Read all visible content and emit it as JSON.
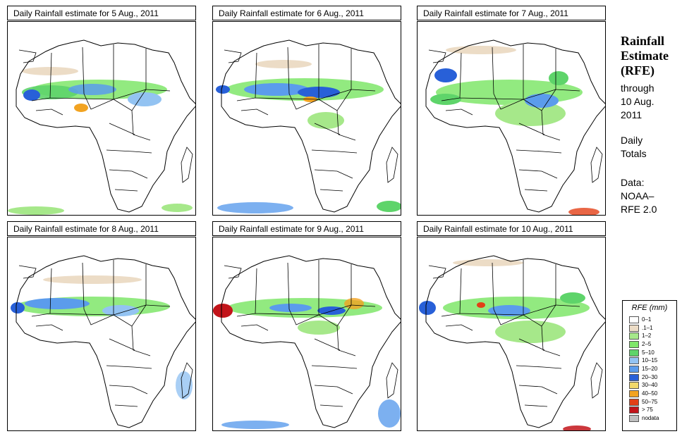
{
  "panels": [
    {
      "title": "Daily Rainfall estimate for  5 Aug., 2011"
    },
    {
      "title": "Daily Rainfall estimate for  6 Aug., 2011"
    },
    {
      "title": "Daily Rainfall estimate for  7 Aug., 2011"
    },
    {
      "title": "Daily Rainfall estimate for  8 Aug., 2011"
    },
    {
      "title": "Daily Rainfall estimate for  9 Aug., 2011"
    },
    {
      "title": "Daily Rainfall estimate for  10 Aug., 2011"
    }
  ],
  "sidebar": {
    "title_line1": "Rainfall",
    "title_line2": "Estimate",
    "title_line3": "(RFE)",
    "through": "through",
    "date_line1": "10 Aug.",
    "date_line2": "2011",
    "daily": "Daily",
    "totals": "Totals",
    "data_label": "Data:",
    "source_line1": "NOAA–",
    "source_line2": "RFE 2.0"
  },
  "legend": {
    "title": "RFE (mm)",
    "items": [
      {
        "label": "0–1",
        "color": "#ffffff"
      },
      {
        "label": ".1–1",
        "color": "#ecdcc6"
      },
      {
        "label": "1–2",
        "color": "#a6e88a"
      },
      {
        "label": "2–5",
        "color": "#7fe66a"
      },
      {
        "label": "5–10",
        "color": "#5ed46a"
      },
      {
        "label": "10–15",
        "color": "#93c3f2"
      },
      {
        "label": "15–20",
        "color": "#5b9cec"
      },
      {
        "label": "20–30",
        "color": "#2860d8"
      },
      {
        "label": "30–40",
        "color": "#f2d96b"
      },
      {
        "label": "40–50",
        "color": "#f2a321"
      },
      {
        "label": "50–75",
        "color": "#e34017"
      },
      {
        "label": "> 75",
        "color": "#c2141a"
      },
      {
        "label": "nodata",
        "color": "#bfbfbf"
      }
    ]
  }
}
